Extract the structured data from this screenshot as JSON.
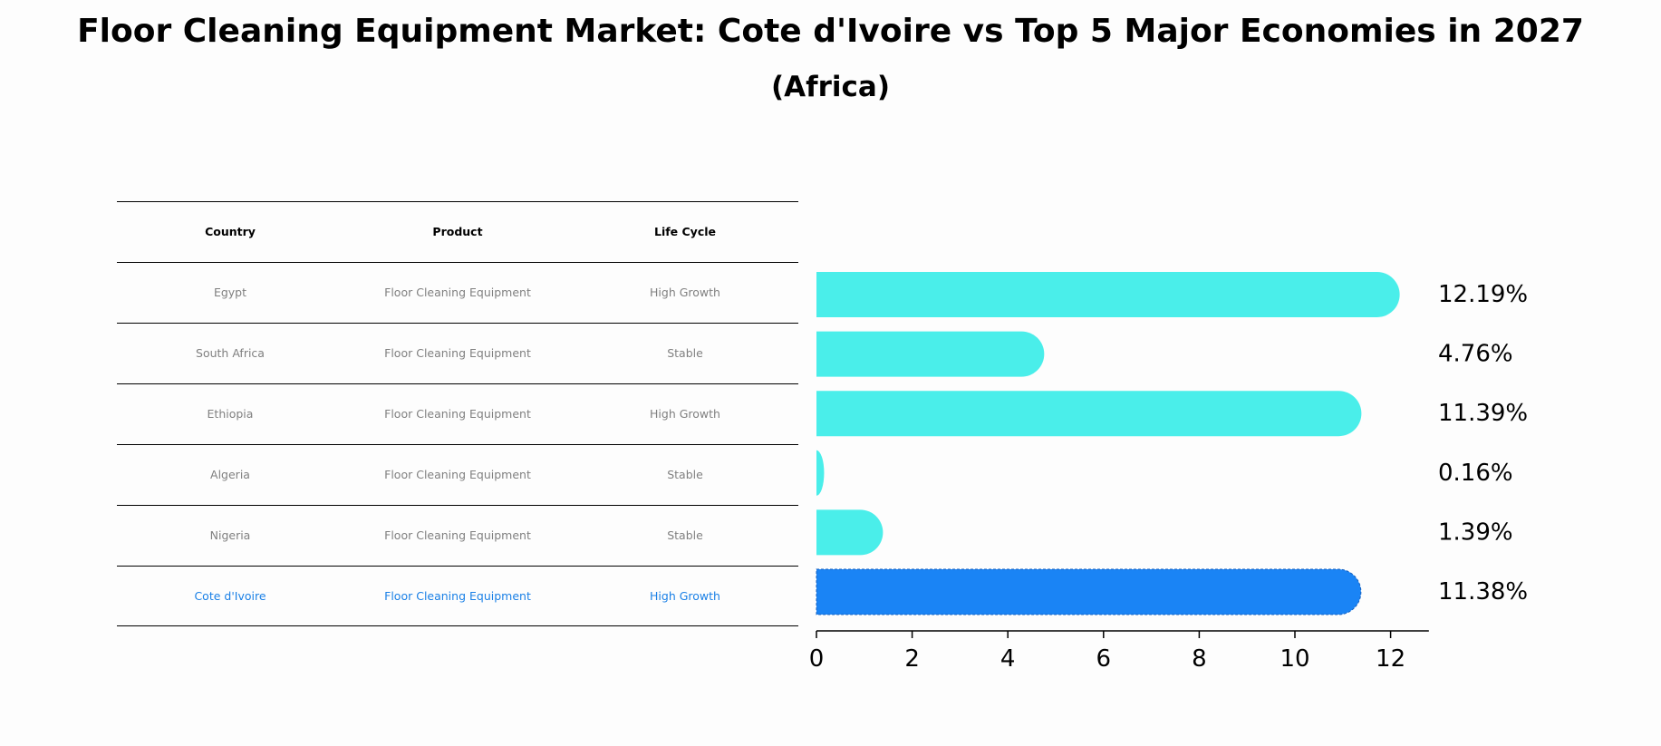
{
  "title": "Floor Cleaning Equipment Market: Cote d'Ivoire vs Top 5 Major Economies in 2027",
  "subtitle": "(Africa)",
  "table": {
    "headers": [
      "Country",
      "Product",
      "Life Cycle"
    ],
    "rows": [
      [
        "Egypt",
        "Floor Cleaning Equipment",
        "High Growth"
      ],
      [
        "South Africa",
        "Floor Cleaning Equipment",
        "Stable"
      ],
      [
        "Ethiopia",
        "Floor Cleaning Equipment",
        "High Growth"
      ],
      [
        "Algeria",
        "Floor Cleaning Equipment",
        "Stable"
      ],
      [
        "Nigeria",
        "Floor Cleaning Equipment",
        "Stable"
      ],
      [
        "Cote d'Ivoire",
        "Floor Cleaning Equipment",
        "High Growth"
      ]
    ]
  },
  "chart_data": {
    "type": "bar",
    "orientation": "horizontal",
    "categories": [
      "Egypt",
      "South Africa",
      "Ethiopia",
      "Algeria",
      "Nigeria",
      "Cote d'Ivoire"
    ],
    "values": [
      12.19,
      4.76,
      11.39,
      0.16,
      1.39,
      11.38
    ],
    "value_labels": [
      "12.19%",
      "4.76%",
      "11.39%",
      "0.16%",
      "1.39%",
      "11.38%"
    ],
    "xticks": [
      "0",
      "2",
      "4",
      "6",
      "8",
      "10",
      "12"
    ],
    "xlim": [
      0,
      12.8
    ],
    "xlabel": "",
    "ylabel": "",
    "grid": false,
    "colors": {
      "bar": "#4aeeea",
      "highlight": "#1a84f5",
      "text": "#808080",
      "highlight_text": "#1a80e6"
    },
    "highlight_index": 5
  }
}
